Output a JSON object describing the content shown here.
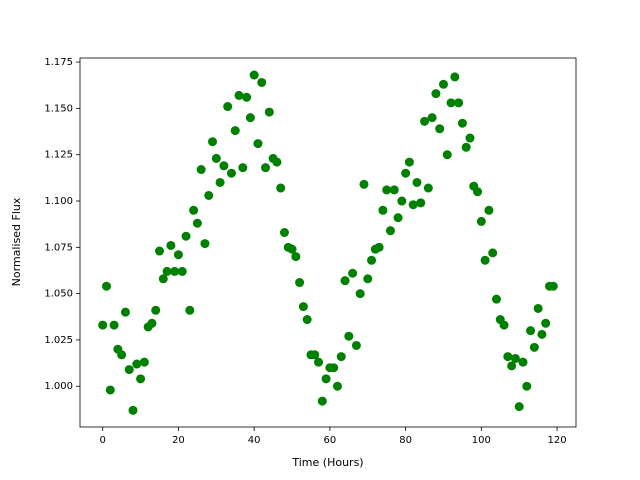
{
  "chart_data": {
    "type": "scatter",
    "xlabel": "Time (Hours)",
    "ylabel": "Normalised Flux",
    "x": [
      0,
      1,
      2,
      3,
      4,
      5,
      6,
      7,
      8,
      9,
      10,
      11,
      12,
      13,
      14,
      15,
      16,
      17,
      18,
      19,
      20,
      21,
      22,
      23,
      24,
      25,
      26,
      27,
      28,
      29,
      30,
      31,
      32,
      33,
      34,
      35,
      36,
      37,
      38,
      39,
      40,
      41,
      42,
      43,
      44,
      45,
      46,
      47,
      48,
      49,
      50,
      51,
      52,
      53,
      54,
      55,
      56,
      57,
      58,
      59,
      60,
      61,
      62,
      63,
      64,
      65,
      66,
      67,
      68,
      69,
      70,
      71,
      72,
      73,
      74,
      75,
      76,
      77,
      78,
      79,
      80,
      81,
      82,
      83,
      84,
      85,
      86,
      87,
      88,
      89,
      90,
      91,
      92,
      93,
      94,
      95,
      96,
      97,
      98,
      99,
      100,
      101,
      102,
      103,
      104,
      105,
      106,
      107,
      108,
      109,
      110,
      111,
      112,
      113,
      114,
      115,
      116,
      117,
      118,
      119
    ],
    "series": [
      {
        "color": "#008000",
        "values": [
          1.033,
          1.054,
          0.998,
          1.033,
          1.02,
          1.017,
          1.04,
          1.009,
          0.987,
          1.012,
          1.004,
          1.013,
          1.032,
          1.034,
          1.041,
          1.073,
          1.058,
          1.062,
          1.076,
          1.062,
          1.071,
          1.062,
          1.081,
          1.041,
          1.095,
          1.088,
          1.117,
          1.077,
          1.103,
          1.132,
          1.123,
          1.11,
          1.119,
          1.151,
          1.115,
          1.138,
          1.157,
          1.118,
          1.156,
          1.145,
          1.168,
          1.131,
          1.164,
          1.118,
          1.148,
          1.123,
          1.121,
          1.107,
          1.083,
          1.075,
          1.074,
          1.07,
          1.056,
          1.043,
          1.036,
          1.017,
          1.017,
          1.013,
          0.992,
          1.004,
          1.01,
          1.01,
          1.0,
          1.016,
          1.057,
          1.027,
          1.061,
          1.022,
          1.05,
          1.109,
          1.058,
          1.068,
          1.074,
          1.075,
          1.095,
          1.106,
          1.084,
          1.106,
          1.091,
          1.1,
          1.115,
          1.121,
          1.098,
          1.11,
          1.099,
          1.143,
          1.107,
          1.145,
          1.158,
          1.139,
          1.163,
          1.125,
          1.153,
          1.167,
          1.153,
          1.142,
          1.129,
          1.134,
          1.108,
          1.105,
          1.089,
          1.068,
          1.095,
          1.072,
          1.047,
          1.036,
          1.033,
          1.016,
          1.011,
          1.015,
          0.989,
          1.013,
          1.0,
          1.03,
          1.021,
          1.042,
          1.028,
          1.034,
          1.054,
          1.054
        ]
      }
    ],
    "xlim": [
      -6,
      125
    ],
    "ylim": [
      0.978,
      1.1772
    ],
    "xticks": [
      0,
      20,
      40,
      60,
      80,
      100,
      120
    ],
    "yticks": [
      {
        "value": 1.0,
        "label": "1.000"
      },
      1.025,
      {
        "value": 1.05,
        "label": "1.050"
      },
      1.075,
      {
        "value": 1.1,
        "label": "1.100"
      },
      1.125,
      {
        "value": 1.15,
        "label": "1.150"
      },
      1.175
    ]
  }
}
